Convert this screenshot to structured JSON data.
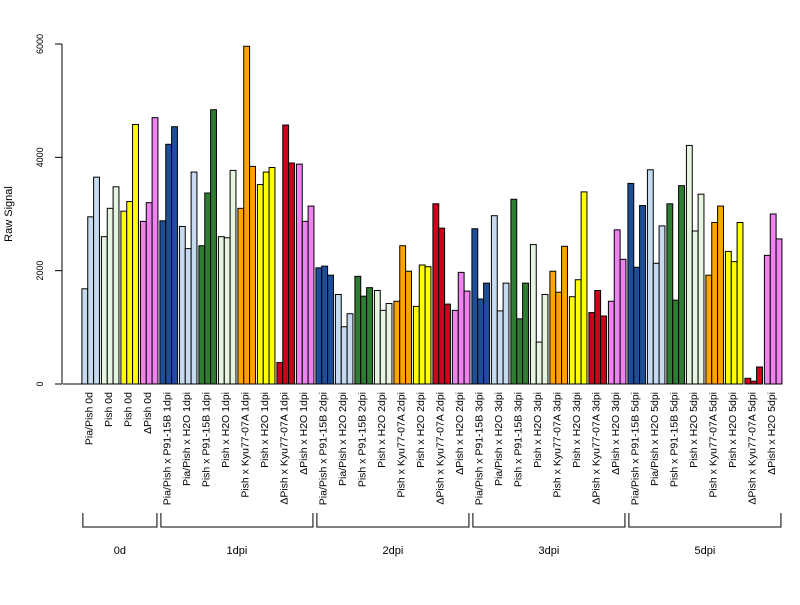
{
  "chart_data": {
    "type": "bar",
    "ylabel": "Raw Signal",
    "xlabel": "",
    "ylim": [
      0,
      6000
    ],
    "yticks": [
      0,
      2000,
      4000,
      6000
    ],
    "categories": [
      "Pia/Pish 0d",
      "Pish 0d",
      "Pish 0d",
      "ΔPish 0d",
      "Pia/Pish x P91-15B 1dpi",
      "Pia/Pish x H2O 1dpi",
      "Pish x P91-15B 1dpi",
      "Pish x H2O 1dpi",
      "Pish x Kyu77-07A 1dpi",
      "Pish x H2O 1dpi",
      "ΔPish x Kyu77-07A 1dpi",
      "ΔPish x H2O 1dpi",
      "Pia/Pish x P91-15B 2dpi",
      "Pia/Pish x H2O 2dpi",
      "Pish x P91-15B 2dpi",
      "Pish x H2O 2dpi",
      "Pish x Kyu77-07A 2dpi",
      "Pish x H2O 2dpi",
      "ΔPish x Kyu77-07A 2dpi",
      "ΔPish x H2O 2dpi",
      "Pia/Pish x P91-15B 3dpi",
      "Pia/Pish x H2O 3dpi",
      "Pish x P91-15B 3dpi",
      "Pish x H2O 3dpi",
      "Pish x Kyu77-07A 3dpi",
      "Pish x H2O 3dpi",
      "ΔPish x Kyu77-07A 3dpi",
      "ΔPish x H2O 3dpi",
      "Pia/Pish x P91-15B 5dpi",
      "Pia/Pish x H2O 5dpi",
      "Pish x P91-15B 5dpi",
      "Pish x H2O 5dpi",
      "Pish x Kyu77-07A 5dpi",
      "Pish x H2O 5dpi",
      "ΔPish x Kyu77-07A 5dpi",
      "ΔPish x H2O 5dpi"
    ],
    "category_colors": [
      "#c6dbef",
      "#e5f5e0",
      "#ffff00",
      "#ee82ee",
      "#1f4e99",
      "#c6dbef",
      "#2e7d32",
      "#e5f5e0",
      "#ffa500",
      "#ffff00",
      "#d0021b",
      "#ee82ee",
      "#1f4e99",
      "#c6dbef",
      "#2e7d32",
      "#e5f5e0",
      "#ffa500",
      "#ffff00",
      "#d0021b",
      "#ee82ee",
      "#1f4e99",
      "#c6dbef",
      "#2e7d32",
      "#e5f5e0",
      "#ffa500",
      "#ffff00",
      "#d0021b",
      "#ee82ee",
      "#1f4e99",
      "#c6dbef",
      "#2e7d32",
      "#e5f5e0",
      "#ffa500",
      "#ffff00",
      "#d0021b",
      "#ee82ee"
    ],
    "values": [
      [
        1680,
        2950,
        3650
      ],
      [
        2600,
        3100,
        3480
      ],
      [
        3050,
        3220,
        4580
      ],
      [
        2870,
        3200,
        4700
      ],
      [
        2880,
        4230,
        4540
      ],
      [
        2780,
        2390,
        3740
      ],
      [
        2440,
        3370,
        4840
      ],
      [
        2600,
        2580,
        3770
      ],
      [
        3100,
        5960,
        3840
      ],
      [
        3520,
        3740,
        3820
      ],
      [
        380,
        4570,
        3900
      ],
      [
        3880,
        2870,
        3140
      ],
      [
        2050,
        2080,
        1920
      ],
      [
        1580,
        1010,
        1240
      ],
      [
        1900,
        1550,
        1700
      ],
      [
        1650,
        1300,
        1420
      ],
      [
        1460,
        2440,
        1990
      ],
      [
        1370,
        2100,
        2070
      ],
      [
        3180,
        2750,
        1410
      ],
      [
        1300,
        1970,
        1640
      ],
      [
        2740,
        1500,
        1780
      ],
      [
        2970,
        1290,
        1780
      ],
      [
        3260,
        1150,
        1780
      ],
      [
        2460,
        740,
        1580
      ],
      [
        1990,
        1620,
        2430
      ],
      [
        1540,
        1840,
        3390
      ],
      [
        1260,
        1650,
        1200
      ],
      [
        1460,
        2720,
        2200
      ],
      [
        3540,
        2060,
        3150
      ],
      [
        3780,
        2130,
        2790
      ],
      [
        3180,
        1480,
        3500
      ],
      [
        4210,
        2700,
        3350
      ],
      [
        1920,
        2850,
        3140
      ],
      [
        2340,
        2160,
        2850
      ],
      [
        100,
        50,
        300
      ],
      [
        2270,
        3000,
        2560
      ]
    ],
    "groups": [
      {
        "label": "0d",
        "start": 0,
        "end": 3
      },
      {
        "label": "1dpi",
        "start": 4,
        "end": 11
      },
      {
        "label": "2dpi",
        "start": 12,
        "end": 19
      },
      {
        "label": "3dpi",
        "start": 20,
        "end": 27
      },
      {
        "label": "5dpi",
        "start": 28,
        "end": 35
      }
    ],
    "grid": false
  }
}
